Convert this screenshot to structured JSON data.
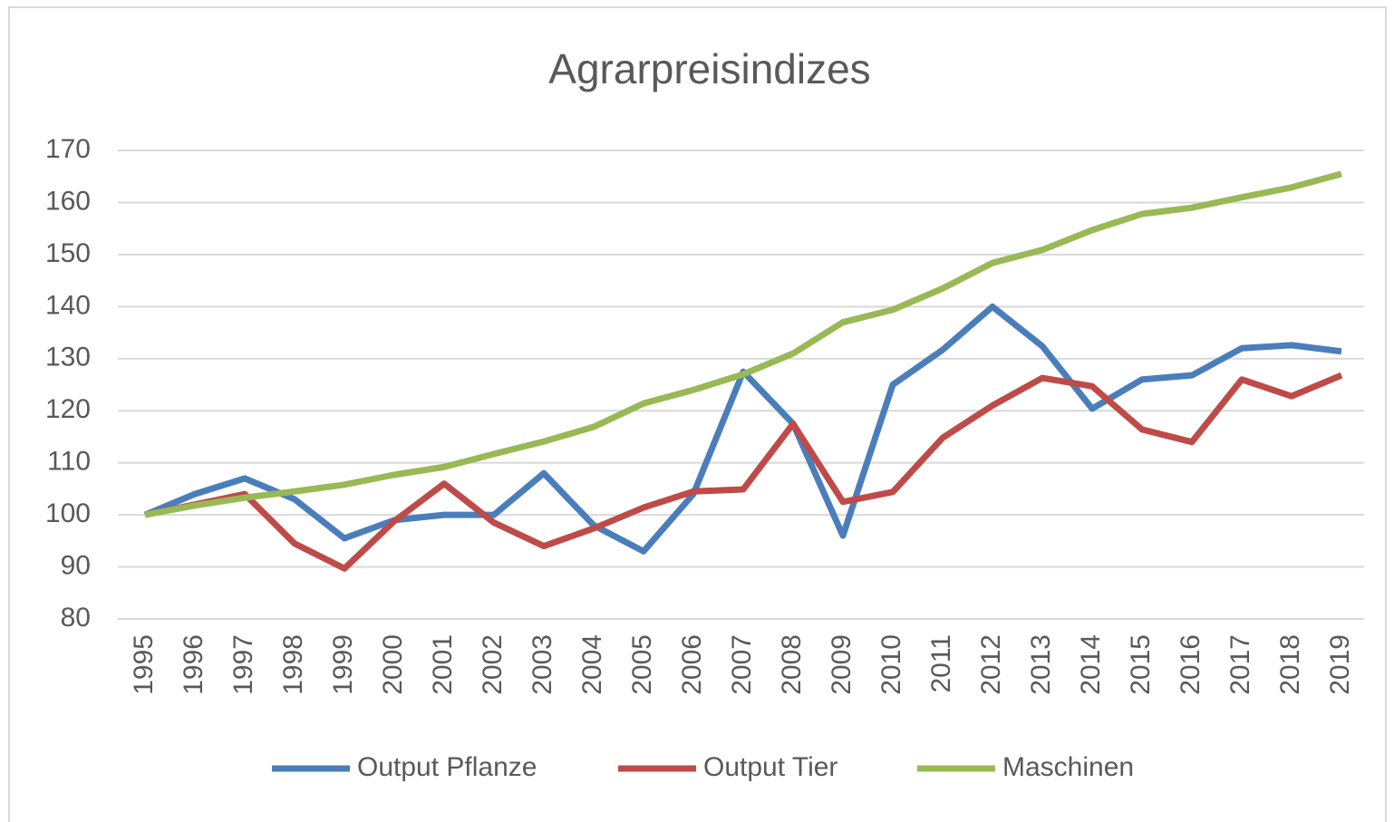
{
  "chart_data": {
    "type": "line",
    "title": "Agrarpreisindizes",
    "categories": [
      "1995",
      "1996",
      "1997",
      "1998",
      "1999",
      "2000",
      "2001",
      "2002",
      "2003",
      "2004",
      "2005",
      "2006",
      "2007",
      "2008",
      "2009",
      "2010",
      "2011",
      "2012",
      "2013",
      "2014",
      "2015",
      "2016",
      "2017",
      "2018",
      "2019"
    ],
    "series": [
      {
        "name": "Output Pflanze",
        "color": "#4a7ebb",
        "values": [
          100,
          104,
          107,
          103,
          95.5,
          99,
          100,
          100,
          108,
          98,
          93,
          104,
          127.5,
          117.5,
          96,
          125,
          131.7,
          140,
          132.4,
          120.4,
          126,
          126.8,
          132,
          132.6,
          131.4
        ]
      },
      {
        "name": "Output Tier",
        "color": "#be4b48",
        "values": [
          100,
          102,
          104,
          94.5,
          89.7,
          98.8,
          106,
          98.5,
          94,
          97.4,
          101.4,
          104.5,
          104.9,
          117.5,
          102.5,
          104.4,
          114.8,
          121,
          126.3,
          124.7,
          116.4,
          114,
          126,
          122.8,
          126.8
        ]
      },
      {
        "name": "Maschinen",
        "color": "#98b954",
        "values": [
          100,
          101.8,
          103.3,
          104.5,
          105.8,
          107.7,
          109.2,
          111.7,
          114.1,
          116.9,
          121.4,
          124,
          127,
          131,
          137,
          139.4,
          143.5,
          148.4,
          150.9,
          154.7,
          157.8,
          159,
          161,
          162.9,
          165.5
        ]
      }
    ],
    "ylim": [
      80,
      170
    ],
    "yticks": [
      80,
      90,
      100,
      110,
      120,
      130,
      140,
      150,
      160,
      170
    ],
    "grid": true,
    "legend": "bottom"
  }
}
